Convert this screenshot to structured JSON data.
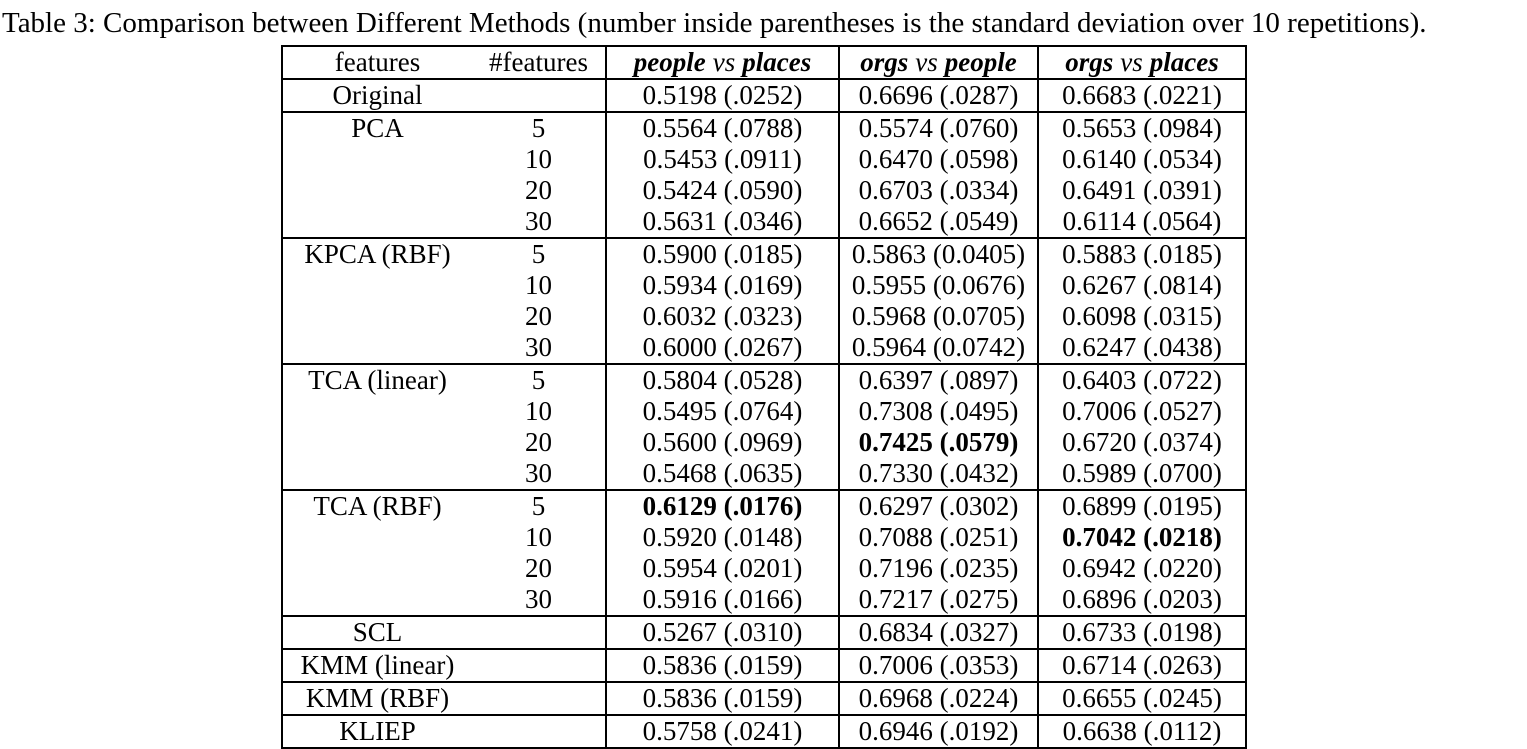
{
  "caption": "Table 3: Comparison between Different Methods (number inside parentheses is the standard deviation over 10 repetitions).",
  "table": {
    "header": {
      "features": "features",
      "num_features": "#features",
      "pairs": [
        {
          "left": "people",
          "vs": "vs",
          "right": "places"
        },
        {
          "left": "orgs",
          "vs": "vs",
          "right": "people"
        },
        {
          "left": "orgs",
          "vs": "vs",
          "right": "places"
        }
      ]
    },
    "groups": [
      {
        "method": "Original",
        "rows": [
          {
            "n": "",
            "cells": [
              {
                "text": "0.5198 (.0252)",
                "bold": false
              },
              {
                "text": "0.6696 (.0287)",
                "bold": false
              },
              {
                "text": "0.6683 (.0221)",
                "bold": false
              }
            ]
          }
        ]
      },
      {
        "method": "PCA",
        "rows": [
          {
            "n": "5",
            "cells": [
              {
                "text": "0.5564 (.0788)",
                "bold": false
              },
              {
                "text": "0.5574 (.0760)",
                "bold": false
              },
              {
                "text": "0.5653 (.0984)",
                "bold": false
              }
            ]
          },
          {
            "n": "10",
            "cells": [
              {
                "text": "0.5453 (.0911)",
                "bold": false
              },
              {
                "text": "0.6470 (.0598)",
                "bold": false
              },
              {
                "text": "0.6140 (.0534)",
                "bold": false
              }
            ]
          },
          {
            "n": "20",
            "cells": [
              {
                "text": "0.5424 (.0590)",
                "bold": false
              },
              {
                "text": "0.6703 (.0334)",
                "bold": false
              },
              {
                "text": "0.6491 (.0391)",
                "bold": false
              }
            ]
          },
          {
            "n": "30",
            "cells": [
              {
                "text": "0.5631 (.0346)",
                "bold": false
              },
              {
                "text": "0.6652 (.0549)",
                "bold": false
              },
              {
                "text": "0.6114 (.0564)",
                "bold": false
              }
            ]
          }
        ]
      },
      {
        "method": "KPCA (RBF)",
        "rows": [
          {
            "n": "5",
            "cells": [
              {
                "text": "0.5900 (.0185)",
                "bold": false
              },
              {
                "text": "0.5863 (0.0405)",
                "bold": false
              },
              {
                "text": "0.5883 (.0185)",
                "bold": false
              }
            ]
          },
          {
            "n": "10",
            "cells": [
              {
                "text": "0.5934 (.0169)",
                "bold": false
              },
              {
                "text": "0.5955 (0.0676)",
                "bold": false
              },
              {
                "text": "0.6267 (.0814)",
                "bold": false
              }
            ]
          },
          {
            "n": "20",
            "cells": [
              {
                "text": "0.6032 (.0323)",
                "bold": false
              },
              {
                "text": "0.5968 (0.0705)",
                "bold": false
              },
              {
                "text": "0.6098 (.0315)",
                "bold": false
              }
            ]
          },
          {
            "n": "30",
            "cells": [
              {
                "text": "0.6000 (.0267)",
                "bold": false
              },
              {
                "text": "0.5964 (0.0742)",
                "bold": false
              },
              {
                "text": "0.6247 (.0438)",
                "bold": false
              }
            ]
          }
        ]
      },
      {
        "method": "TCA (linear)",
        "rows": [
          {
            "n": "5",
            "cells": [
              {
                "text": "0.5804 (.0528)",
                "bold": false
              },
              {
                "text": "0.6397 (.0897)",
                "bold": false
              },
              {
                "text": "0.6403 (.0722)",
                "bold": false
              }
            ]
          },
          {
            "n": "10",
            "cells": [
              {
                "text": "0.5495 (.0764)",
                "bold": false
              },
              {
                "text": "0.7308 (.0495)",
                "bold": false
              },
              {
                "text": "0.7006 (.0527)",
                "bold": false
              }
            ]
          },
          {
            "n": "20",
            "cells": [
              {
                "text": "0.5600 (.0969)",
                "bold": false
              },
              {
                "text": "0.7425 (.0579)",
                "bold": true
              },
              {
                "text": "0.6720 (.0374)",
                "bold": false
              }
            ]
          },
          {
            "n": "30",
            "cells": [
              {
                "text": "0.5468 (.0635)",
                "bold": false
              },
              {
                "text": "0.7330 (.0432)",
                "bold": false
              },
              {
                "text": "0.5989 (.0700)",
                "bold": false
              }
            ]
          }
        ]
      },
      {
        "method": "TCA (RBF)",
        "rows": [
          {
            "n": "5",
            "cells": [
              {
                "text": "0.6129 (.0176)",
                "bold": true
              },
              {
                "text": "0.6297 (.0302)",
                "bold": false
              },
              {
                "text": "0.6899 (.0195)",
                "bold": false
              }
            ]
          },
          {
            "n": "10",
            "cells": [
              {
                "text": "0.5920 (.0148)",
                "bold": false
              },
              {
                "text": "0.7088 (.0251)",
                "bold": false
              },
              {
                "text": "0.7042 (.0218)",
                "bold": true
              }
            ]
          },
          {
            "n": "20",
            "cells": [
              {
                "text": "0.5954 (.0201)",
                "bold": false
              },
              {
                "text": "0.7196 (.0235)",
                "bold": false
              },
              {
                "text": "0.6942 (.0220)",
                "bold": false
              }
            ]
          },
          {
            "n": "30",
            "cells": [
              {
                "text": "0.5916 (.0166)",
                "bold": false
              },
              {
                "text": "0.7217 (.0275)",
                "bold": false
              },
              {
                "text": "0.6896 (.0203)",
                "bold": false
              }
            ]
          }
        ]
      },
      {
        "method": "SCL",
        "rows": [
          {
            "n": "",
            "cells": [
              {
                "text": "0.5267 (.0310)",
                "bold": false
              },
              {
                "text": "0.6834 (.0327)",
                "bold": false
              },
              {
                "text": "0.6733 (.0198)",
                "bold": false
              }
            ]
          }
        ]
      },
      {
        "method": "KMM (linear)",
        "rows": [
          {
            "n": "",
            "cells": [
              {
                "text": "0.5836 (.0159)",
                "bold": false
              },
              {
                "text": "0.7006 (.0353)",
                "bold": false
              },
              {
                "text": "0.6714 (.0263)",
                "bold": false
              }
            ]
          }
        ]
      },
      {
        "method": "KMM (RBF)",
        "rows": [
          {
            "n": "",
            "cells": [
              {
                "text": "0.5836 (.0159)",
                "bold": false
              },
              {
                "text": "0.6968 (.0224)",
                "bold": false
              },
              {
                "text": "0.6655 (.0245)",
                "bold": false
              }
            ]
          }
        ]
      },
      {
        "method": "KLIEP",
        "rows": [
          {
            "n": "",
            "cells": [
              {
                "text": "0.5758 (.0241)",
                "bold": false
              },
              {
                "text": "0.6946 (.0192)",
                "bold": false
              },
              {
                "text": "0.6638 (.0112)",
                "bold": false
              }
            ]
          }
        ]
      }
    ]
  }
}
